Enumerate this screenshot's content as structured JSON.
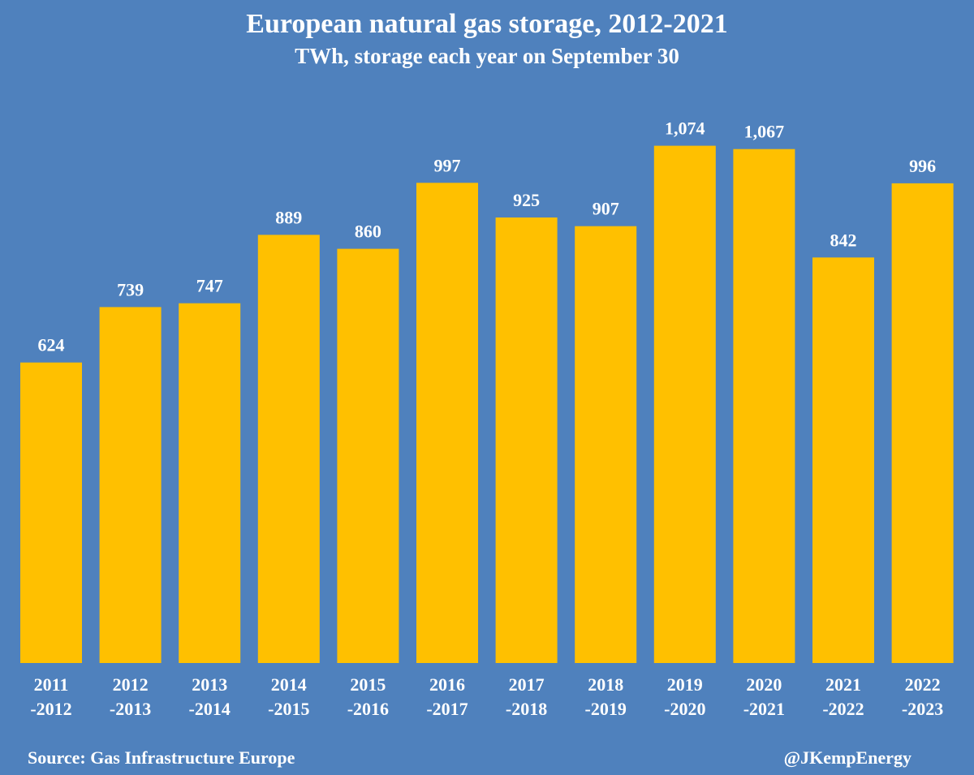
{
  "chart_data": {
    "type": "bar",
    "title": "European natural gas storage, 2012-2021",
    "subtitle": "TWh, storage each year on September 30",
    "xlabel": "",
    "ylabel": "",
    "categories": [
      [
        "2011",
        "-2012"
      ],
      [
        "2012",
        "-2013"
      ],
      [
        "2013",
        "-2014"
      ],
      [
        "2014",
        "-2015"
      ],
      [
        "2015",
        "-2016"
      ],
      [
        "2016",
        "-2017"
      ],
      [
        "2017",
        "-2018"
      ],
      [
        "2018",
        "-2019"
      ],
      [
        "2019",
        "-2020"
      ],
      [
        "2020",
        "-2021"
      ],
      [
        "2021",
        "-2022"
      ],
      [
        "2022",
        "-2023"
      ]
    ],
    "values": [
      624,
      739,
      747,
      889,
      860,
      997,
      925,
      907,
      1074,
      1067,
      842,
      996
    ],
    "value_labels": [
      "624",
      "739",
      "747",
      "889",
      "860",
      "997",
      "925",
      "907",
      "1,074",
      "1,067",
      "842",
      "996"
    ],
    "ylim": [
      0,
      1100
    ],
    "grid": false,
    "colors": {
      "background": "#4f81bd",
      "bar": "#ffc000",
      "text": "#ffffff"
    }
  },
  "footer": {
    "source": "Source: Gas Infrastructure Europe",
    "handle": "@JKempEnergy"
  }
}
